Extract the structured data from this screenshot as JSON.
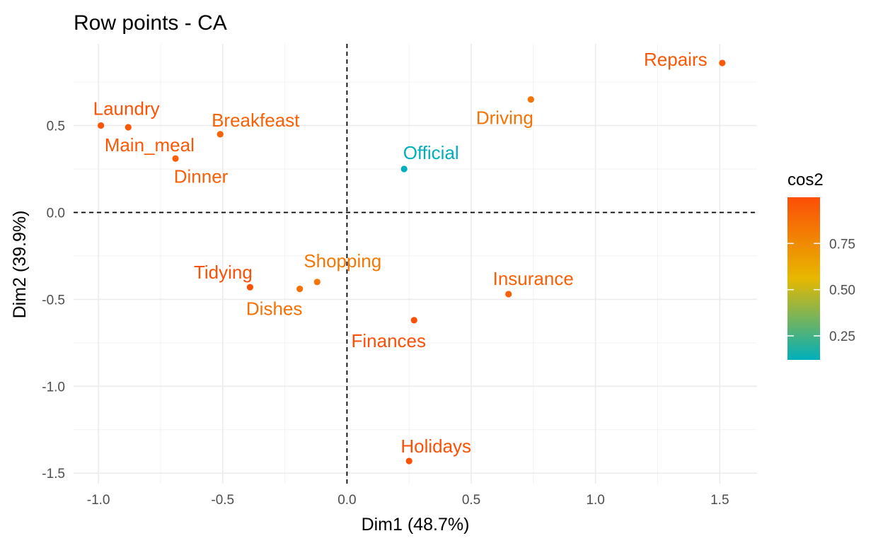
{
  "chart_data": {
    "type": "scatter",
    "title": "Row points - CA",
    "xlabel": "Dim1 (48.7%)",
    "ylabel": "Dim2 (39.9%)",
    "xlim": [
      -1.1,
      1.65
    ],
    "ylim": [
      -1.56,
      0.97
    ],
    "x_ticks": [
      -1.0,
      -0.5,
      0.0,
      0.5,
      1.0,
      1.5
    ],
    "x_tick_labels": [
      "-1.0",
      "-0.5",
      "0.0",
      "0.5",
      "1.0",
      "1.5"
    ],
    "y_ticks": [
      0.5,
      0.0,
      -0.5,
      -1.0,
      -1.5
    ],
    "y_tick_labels": [
      "0.5",
      "0.0",
      "-0.5",
      "-1.0",
      "-1.5"
    ],
    "grid": true,
    "reference_lines": {
      "x": 0,
      "y": 0,
      "style": "dashed"
    },
    "color_by": "cos2",
    "points": [
      {
        "label": "Laundry",
        "x": -0.99,
        "y": 0.5,
        "cos2": 0.98
      },
      {
        "label": "Main_meal",
        "x": -0.88,
        "y": 0.49,
        "cos2": 0.96
      },
      {
        "label": "Dinner",
        "x": -0.69,
        "y": 0.31,
        "cos2": 0.93
      },
      {
        "label": "Breakfeast",
        "x": -0.51,
        "y": 0.45,
        "cos2": 0.92
      },
      {
        "label": "Tidying",
        "x": -0.39,
        "y": -0.43,
        "cos2": 0.99
      },
      {
        "label": "Dishes",
        "x": -0.19,
        "y": -0.44,
        "cos2": 0.86
      },
      {
        "label": "Shopping",
        "x": -0.12,
        "y": -0.4,
        "cos2": 0.83
      },
      {
        "label": "Official",
        "x": 0.23,
        "y": 0.25,
        "cos2": 0.12
      },
      {
        "label": "Driving",
        "x": 0.74,
        "y": 0.65,
        "cos2": 0.85
      },
      {
        "label": "Finances",
        "x": 0.27,
        "y": -0.62,
        "cos2": 0.99
      },
      {
        "label": "Insurance",
        "x": 0.65,
        "y": -0.47,
        "cos2": 0.93
      },
      {
        "label": "Repairs",
        "x": 1.51,
        "y": 0.86,
        "cos2": 0.96
      },
      {
        "label": "Holidays",
        "x": 0.25,
        "y": -1.43,
        "cos2": 0.99
      }
    ],
    "legend": {
      "title": "cos2",
      "placement": "right",
      "range": [
        0.12,
        1.0
      ],
      "ticks": [
        0.75,
        0.5,
        0.25
      ],
      "tick_labels": [
        "0.75",
        "0.50",
        "0.25"
      ],
      "colors": [
        "#00AFBB",
        "#E7B800",
        "#FC4E07"
      ]
    }
  }
}
